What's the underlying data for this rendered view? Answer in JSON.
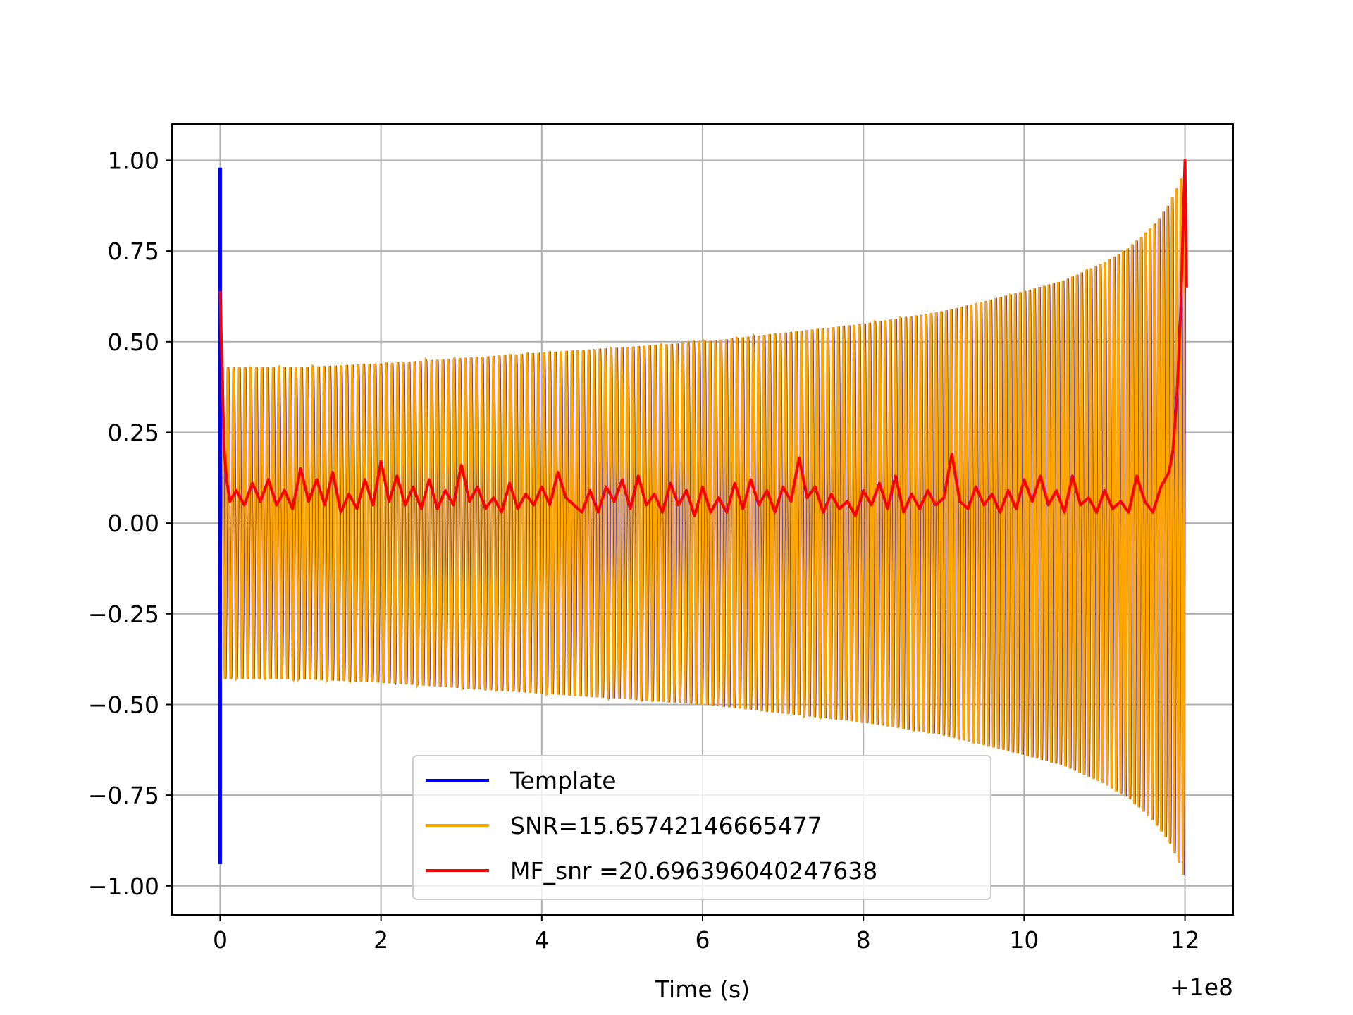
{
  "chart_data": {
    "type": "line",
    "title": "",
    "xlabel": "Time (s)",
    "ylabel": "",
    "x_offset_label": "+1e8",
    "xlim": [
      -0.6,
      12.6
    ],
    "ylim": [
      -1.08,
      1.1
    ],
    "xticks": [
      0,
      2,
      4,
      6,
      8,
      10,
      12
    ],
    "xtick_labels": [
      "0",
      "2",
      "4",
      "6",
      "8",
      "10",
      "12"
    ],
    "yticks": [
      1.0,
      0.75,
      0.5,
      0.25,
      0.0,
      -0.25,
      -0.5,
      -0.75,
      -1.0
    ],
    "ytick_labels": [
      "1.00",
      "0.75",
      "0.50",
      "0.25",
      "0.00",
      "−0.25",
      "−0.50",
      "−0.75",
      "−1.00"
    ],
    "grid": true,
    "legend_position": "lower-center",
    "series": [
      {
        "name": "Template",
        "color": "#0000ff",
        "description": "spike at t=0",
        "x": [
          0.0,
          0.0,
          0.0,
          0.0
        ],
        "y": [
          0.98,
          -0.94,
          -0.25,
          0.0
        ]
      },
      {
        "name": "SNR=15.65742146665477",
        "color": "#ffa500",
        "envelope_x": [
          0.05,
          1,
          2,
          3,
          4,
          5,
          6,
          7,
          8,
          9,
          10,
          10.5,
          11,
          11.3,
          11.6,
          11.8,
          11.95,
          12.0
        ],
        "envelope_y": [
          0.43,
          0.43,
          0.44,
          0.455,
          0.47,
          0.485,
          0.5,
          0.525,
          0.55,
          0.585,
          0.64,
          0.67,
          0.72,
          0.76,
          0.82,
          0.88,
          0.95,
          0.99
        ],
        "cycles": 190
      },
      {
        "name": "MF_snr =20.696396040247638",
        "color": "#ff0000",
        "x": [
          0.0,
          0.02,
          0.05,
          0.08,
          0.12,
          0.2,
          0.3,
          0.4,
          0.5,
          0.6,
          0.7,
          0.8,
          0.9,
          1.0,
          1.1,
          1.2,
          1.3,
          1.4,
          1.5,
          1.6,
          1.7,
          1.8,
          1.9,
          2.0,
          2.1,
          2.2,
          2.3,
          2.4,
          2.5,
          2.6,
          2.7,
          2.8,
          2.9,
          3.0,
          3.1,
          3.2,
          3.3,
          3.4,
          3.5,
          3.6,
          3.7,
          3.8,
          3.9,
          4.0,
          4.1,
          4.2,
          4.3,
          4.4,
          4.5,
          4.6,
          4.7,
          4.8,
          4.9,
          5.0,
          5.1,
          5.2,
          5.3,
          5.4,
          5.5,
          5.6,
          5.7,
          5.8,
          5.9,
          6.0,
          6.1,
          6.2,
          6.3,
          6.4,
          6.5,
          6.6,
          6.7,
          6.8,
          6.9,
          7.0,
          7.1,
          7.2,
          7.3,
          7.4,
          7.5,
          7.6,
          7.7,
          7.8,
          7.9,
          8.0,
          8.1,
          8.2,
          8.3,
          8.4,
          8.5,
          8.6,
          8.7,
          8.8,
          8.9,
          9.0,
          9.1,
          9.2,
          9.3,
          9.4,
          9.5,
          9.6,
          9.7,
          9.8,
          9.9,
          10.0,
          10.1,
          10.2,
          10.3,
          10.4,
          10.5,
          10.6,
          10.7,
          10.8,
          10.9,
          11.0,
          11.1,
          11.2,
          11.3,
          11.4,
          11.5,
          11.6,
          11.7,
          11.8,
          11.85,
          11.9,
          11.95,
          11.98,
          12.0,
          12.02
        ],
        "y": [
          0.64,
          0.45,
          0.2,
          0.12,
          0.06,
          0.09,
          0.05,
          0.11,
          0.06,
          0.12,
          0.05,
          0.09,
          0.04,
          0.15,
          0.06,
          0.12,
          0.05,
          0.14,
          0.03,
          0.08,
          0.04,
          0.12,
          0.05,
          0.17,
          0.06,
          0.13,
          0.05,
          0.1,
          0.04,
          0.12,
          0.04,
          0.09,
          0.05,
          0.16,
          0.06,
          0.1,
          0.04,
          0.07,
          0.03,
          0.11,
          0.04,
          0.08,
          0.05,
          0.1,
          0.05,
          0.14,
          0.07,
          0.05,
          0.03,
          0.09,
          0.03,
          0.1,
          0.06,
          0.12,
          0.04,
          0.13,
          0.05,
          0.08,
          0.03,
          0.11,
          0.05,
          0.09,
          0.02,
          0.1,
          0.03,
          0.07,
          0.03,
          0.11,
          0.04,
          0.12,
          0.05,
          0.09,
          0.03,
          0.1,
          0.06,
          0.18,
          0.07,
          0.1,
          0.03,
          0.08,
          0.04,
          0.06,
          0.02,
          0.09,
          0.05,
          0.11,
          0.04,
          0.13,
          0.03,
          0.08,
          0.04,
          0.09,
          0.05,
          0.07,
          0.19,
          0.06,
          0.04,
          0.1,
          0.05,
          0.08,
          0.03,
          0.09,
          0.04,
          0.12,
          0.06,
          0.13,
          0.05,
          0.09,
          0.03,
          0.13,
          0.05,
          0.07,
          0.03,
          0.09,
          0.04,
          0.06,
          0.03,
          0.13,
          0.06,
          0.03,
          0.1,
          0.14,
          0.2,
          0.35,
          0.6,
          0.85,
          1.0,
          0.65
        ]
      }
    ]
  }
}
